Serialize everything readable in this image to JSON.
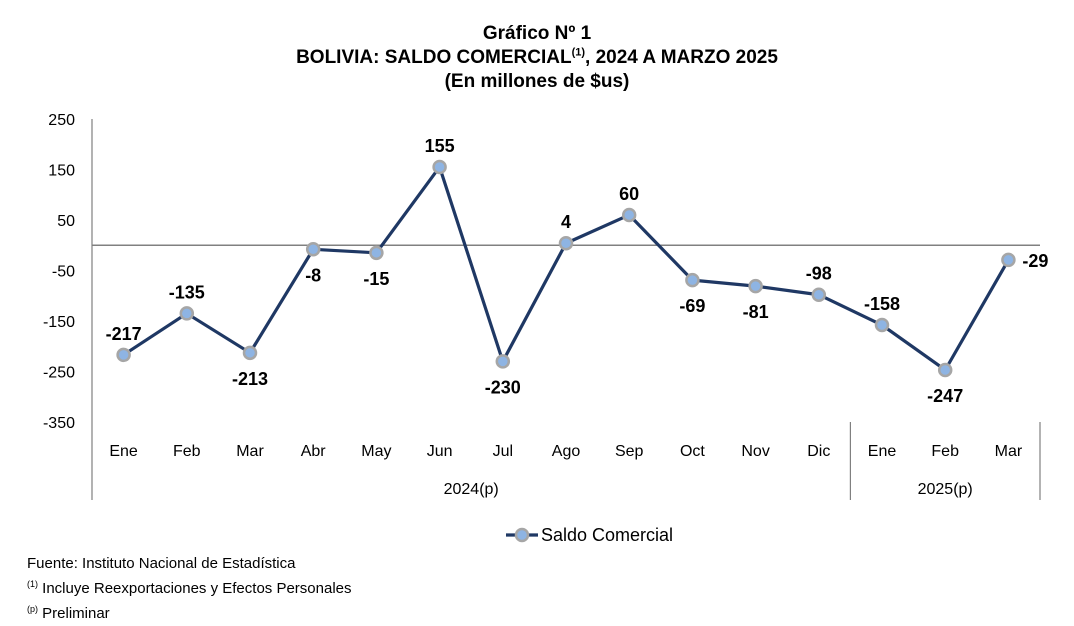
{
  "header": {
    "line1": "Gráfico Nº 1",
    "line2_pre": "BOLIVIA: SALDO COMERCIAL",
    "line2_sup": "(1)",
    "line2_post": ", 2024 A MARZO 2025",
    "line3": "(En millones de $us)"
  },
  "notes": {
    "source": "Fuente: Instituto Nacional de Estadística",
    "note1_mark": "(1)",
    "note1_text": " Incluye Reexportaciones y Efectos Personales",
    "note2_mark": "(p)",
    "note2_text": " Preliminar"
  },
  "colors": {
    "line": "#1F3864",
    "marker_fill": "#8EB4E3",
    "marker_stroke": "#A6A6A6",
    "zero_line": "#808080",
    "axis": "#808080"
  },
  "chart_data": {
    "type": "line",
    "categories": [
      "Ene",
      "Feb",
      "Mar",
      "Abr",
      "May",
      "Jun",
      "Jul",
      "Ago",
      "Sep",
      "Oct",
      "Nov",
      "Dic",
      "Ene",
      "Feb",
      "Mar"
    ],
    "groups": [
      {
        "label": "2024(p)",
        "count": 12
      },
      {
        "label": "2025(p)",
        "count": 3
      }
    ],
    "series": [
      {
        "name": "Saldo Comercial",
        "values": [
          -217,
          -135,
          -213,
          -8,
          -15,
          155,
          -230,
          4,
          60,
          -69,
          -81,
          -98,
          -158,
          -247,
          -29
        ]
      }
    ],
    "label_positions": [
      "above",
      "above",
      "below",
      "below",
      "below",
      "above",
      "below",
      "above",
      "above",
      "below",
      "below",
      "above",
      "above",
      "below",
      "right"
    ],
    "y_ticks": [
      250,
      150,
      50,
      -50,
      -150,
      -250,
      -350
    ],
    "ylim": [
      -350,
      250
    ],
    "legend_position": "bottom"
  }
}
